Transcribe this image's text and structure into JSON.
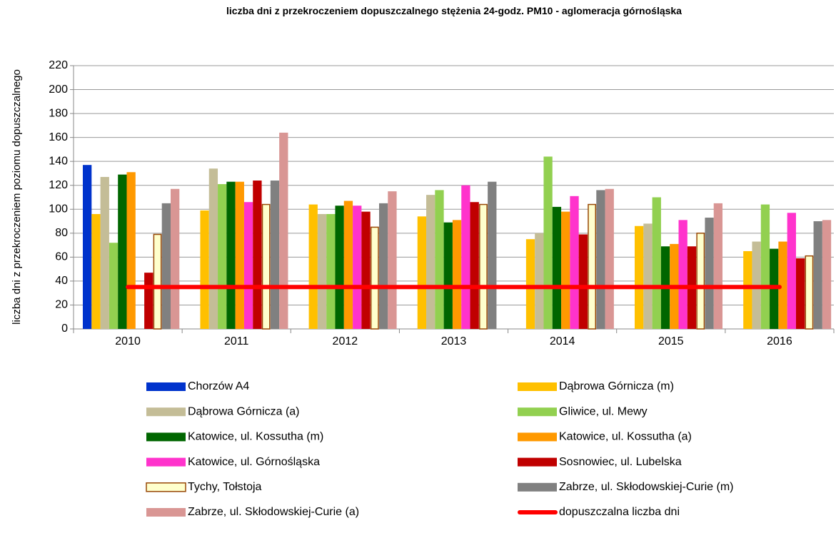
{
  "chart_data": {
    "type": "bar",
    "title": "liczba dni z przekroczeniem dopuszczalnego stężenia 24-godz. PM10  - aglomeracja górnośląska",
    "y_label": "liczba dni z przekroczeniem poziomu dopuszczalnego",
    "categories": [
      "2010",
      "2011",
      "2012",
      "2013",
      "2014",
      "2015",
      "2016"
    ],
    "ylim": [
      0,
      220
    ],
    "yticks": [
      0,
      20,
      40,
      60,
      80,
      100,
      120,
      140,
      160,
      180,
      200,
      220
    ],
    "grid": true,
    "series": [
      {
        "name": "Chorzów A4",
        "color": "#0033cc",
        "values": [
          137,
          null,
          null,
          null,
          null,
          null,
          null
        ]
      },
      {
        "name": "Dąbrowa Górnicza (m)",
        "color": "#ffc000",
        "values": [
          96,
          99,
          104,
          94,
          75,
          86,
          65
        ]
      },
      {
        "name": "Dąbrowa Górnicza (a)",
        "color": "#c4bd97",
        "values": [
          127,
          134,
          96,
          112,
          80,
          88,
          73
        ]
      },
      {
        "name": "Gliwice, ul. Mewy",
        "color": "#92d050",
        "values": [
          72,
          121,
          96,
          116,
          144,
          110,
          104
        ]
      },
      {
        "name": "Katowice, ul. Kossutha (m)",
        "color": "#006600",
        "values": [
          129,
          123,
          103,
          89,
          102,
          69,
          67
        ]
      },
      {
        "name": "Katowice, ul. Kossutha (a)",
        "color": "#ff9900",
        "values": [
          131,
          123,
          107,
          91,
          98,
          71,
          73
        ]
      },
      {
        "name": "Katowice, ul. Górnośląska",
        "color": "#ff33cc",
        "values": [
          null,
          106,
          103,
          120,
          111,
          91,
          97
        ]
      },
      {
        "name": "Sosnowiec, ul. Lubelska",
        "color": "#c00000",
        "values": [
          47,
          124,
          98,
          106,
          79,
          69,
          59
        ]
      },
      {
        "name": "Tychy, Tołstoja",
        "color": "#ffffcc",
        "border": "#984807",
        "values": [
          79,
          104,
          85,
          104,
          104,
          80,
          61
        ]
      },
      {
        "name": "Zabrze, ul. Skłodowskiej-Curie (m)",
        "color": "#808080",
        "values": [
          105,
          124,
          105,
          123,
          116,
          93,
          90
        ]
      },
      {
        "name": "Zabrze, ul. Skłodowskiej-Curie (a)",
        "color": "#d99694",
        "values": [
          117,
          164,
          115,
          null,
          117,
          105,
          91
        ]
      },
      {
        "name": "dopuszczalna liczba dni",
        "type": "line",
        "color": "#ff0000",
        "values": [
          35,
          35,
          35,
          35,
          35,
          35,
          35
        ]
      }
    ]
  }
}
